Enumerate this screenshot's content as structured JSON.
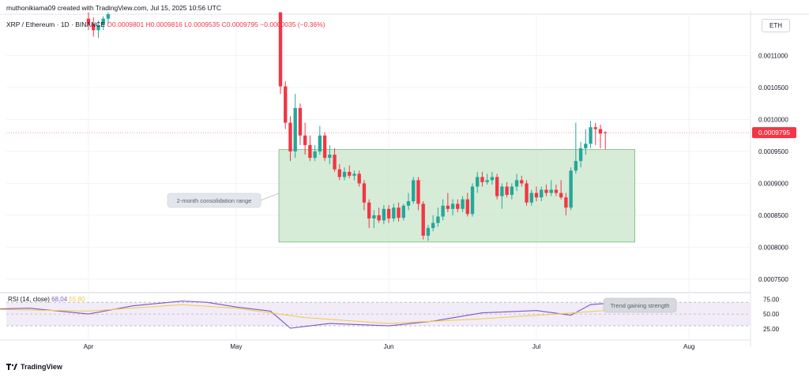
{
  "header": {
    "author_line": "muthonikiama09 created with TradingView.com, Jul 15, 2025 10:56 UTC",
    "symbol": "XRP / Ethereum · 1D · BINANCE",
    "o_label": "O",
    "o_value": "0.0009801",
    "h_label": "H",
    "h_value": "0.0009816",
    "l_label": "L",
    "l_value": "0.0009535",
    "c_label": "C",
    "c_value": "0.0009795",
    "change": "−0.0000035 (−0.36%)"
  },
  "currency_badge": "ETH",
  "price_badge": "0.0009795",
  "annotations": {
    "range_label": "2-month consolidation range",
    "rsi_label": "Trend gaining strength"
  },
  "rsi_legend": {
    "name": "RSI (14, close)",
    "value": "68.04",
    "ma_value": "55.80"
  },
  "footer": {
    "brand": "TradingView"
  },
  "colors": {
    "up": "#26a69a",
    "down": "#f23645",
    "range_fill": "#c8e6c9",
    "rsi_line": "#7e57c2",
    "rsi_ma": "#f5c842",
    "rsi_band": "#ede7f6"
  },
  "chart_data": [
    {
      "type": "candlestick",
      "title": "XRP / Ethereum · 1D · BINANCE",
      "y_axis_ticks": [
        "0.0011000",
        "0.0010500",
        "0.0010000",
        "0.0009500",
        "0.0009000",
        "0.0008500",
        "0.0008000",
        "0.0007500"
      ],
      "y_ticks_values": [
        0.0011,
        0.00105,
        0.001,
        0.00095,
        0.0009,
        0.00085,
        0.0008,
        0.00075
      ],
      "x_axis_ticks": [
        "Apr",
        "May",
        "Jun",
        "Jul",
        "Aug"
      ],
      "ylim": [
        0.00073,
        0.00117
      ],
      "grid": true,
      "consolidation_range": {
        "low": 0.000808,
        "high": 0.000953,
        "start": "May 10",
        "end": "Jul 21"
      },
      "candles_april": [
        {
          "date": "Apr 01",
          "o": 0.001158,
          "h": 0.001168,
          "l": 0.00114,
          "c": 0.00115
        },
        {
          "date": "Apr 02",
          "o": 0.00115,
          "h": 0.00116,
          "l": 0.00113,
          "c": 0.00114
        },
        {
          "date": "Apr 03",
          "o": 0.00114,
          "h": 0.001155,
          "l": 0.001128,
          "c": 0.001148
        },
        {
          "date": "Apr 04",
          "o": 0.001148,
          "h": 0.001162,
          "l": 0.00114,
          "c": 0.001158
        },
        {
          "date": "Apr 05",
          "o": 0.001158,
          "h": 0.001168,
          "l": 0.00115,
          "c": 0.001165
        }
      ],
      "candles": [
        {
          "date": "May 10",
          "o": 0.001168,
          "h": 0.001168,
          "l": 0.00104,
          "c": 0.001052
        },
        {
          "date": "May 11",
          "o": 0.001052,
          "h": 0.00106,
          "l": 0.000985,
          "c": 0.000995
        },
        {
          "date": "May 12",
          "o": 0.000995,
          "h": 0.001005,
          "l": 0.000935,
          "c": 0.00095
        },
        {
          "date": "May 13",
          "o": 0.00095,
          "h": 0.00104,
          "l": 0.00094,
          "c": 0.001018
        },
        {
          "date": "May 14",
          "o": 0.001018,
          "h": 0.001025,
          "l": 0.00096,
          "c": 0.000975
        },
        {
          "date": "May 15",
          "o": 0.000975,
          "h": 0.000995,
          "l": 0.000945,
          "c": 0.00096
        },
        {
          "date": "May 16",
          "o": 0.00096,
          "h": 0.000975,
          "l": 0.000935,
          "c": 0.00094
        },
        {
          "date": "May 17",
          "o": 0.00094,
          "h": 0.00096,
          "l": 0.000935,
          "c": 0.00095
        },
        {
          "date": "May 18",
          "o": 0.00095,
          "h": 0.00099,
          "l": 0.000945,
          "c": 0.000975
        },
        {
          "date": "May 19",
          "o": 0.000975,
          "h": 0.00098,
          "l": 0.000935,
          "c": 0.00094
        },
        {
          "date": "May 20",
          "o": 0.00094,
          "h": 0.00096,
          "l": 0.00093,
          "c": 0.000945
        },
        {
          "date": "May 21",
          "o": 0.000945,
          "h": 0.000955,
          "l": 0.000918,
          "c": 0.000922
        },
        {
          "date": "May 22",
          "o": 0.000922,
          "h": 0.00093,
          "l": 0.000905,
          "c": 0.00091
        },
        {
          "date": "May 23",
          "o": 0.00091,
          "h": 0.000925,
          "l": 0.000905,
          "c": 0.000918
        },
        {
          "date": "May 24",
          "o": 0.000918,
          "h": 0.000928,
          "l": 0.000908,
          "c": 0.000912
        },
        {
          "date": "May 25",
          "o": 0.000912,
          "h": 0.00092,
          "l": 0.000905,
          "c": 0.000915
        },
        {
          "date": "May 26",
          "o": 0.000915,
          "h": 0.00092,
          "l": 0.000895,
          "c": 0.0009
        },
        {
          "date": "May 27",
          "o": 0.0009,
          "h": 0.000905,
          "l": 0.000858,
          "c": 0.00087
        },
        {
          "date": "May 28",
          "o": 0.00087,
          "h": 0.000875,
          "l": 0.00083,
          "c": 0.000845
        },
        {
          "date": "May 29",
          "o": 0.000845,
          "h": 0.000858,
          "l": 0.00083,
          "c": 0.00085
        },
        {
          "date": "May 30",
          "o": 0.00085,
          "h": 0.000862,
          "l": 0.000838,
          "c": 0.000842
        },
        {
          "date": "May 31",
          "o": 0.000842,
          "h": 0.000866,
          "l": 0.000836,
          "c": 0.00086
        },
        {
          "date": "Jun 01",
          "o": 0.00086,
          "h": 0.000866,
          "l": 0.000838,
          "c": 0.000845
        },
        {
          "date": "Jun 02",
          "o": 0.000845,
          "h": 0.000868,
          "l": 0.00084,
          "c": 0.000862
        },
        {
          "date": "Jun 03",
          "o": 0.000862,
          "h": 0.00087,
          "l": 0.00084,
          "c": 0.000846
        },
        {
          "date": "Jun 04",
          "o": 0.000846,
          "h": 0.000868,
          "l": 0.000842,
          "c": 0.000865
        },
        {
          "date": "Jun 05",
          "o": 0.000865,
          "h": 0.000885,
          "l": 0.000858,
          "c": 0.000872
        },
        {
          "date": "Jun 06",
          "o": 0.000872,
          "h": 0.00091,
          "l": 0.000868,
          "c": 0.000905
        },
        {
          "date": "Jun 07",
          "o": 0.000905,
          "h": 0.00091,
          "l": 0.000858,
          "c": 0.000868
        },
        {
          "date": "Jun 08",
          "o": 0.000868,
          "h": 0.000872,
          "l": 0.000812,
          "c": 0.000818
        },
        {
          "date": "Jun 09",
          "o": 0.000818,
          "h": 0.000835,
          "l": 0.00081,
          "c": 0.00083
        },
        {
          "date": "Jun 10",
          "o": 0.00083,
          "h": 0.00085,
          "l": 0.000825,
          "c": 0.000838
        },
        {
          "date": "Jun 11",
          "o": 0.000838,
          "h": 0.000862,
          "l": 0.000832,
          "c": 0.000848
        },
        {
          "date": "Jun 12",
          "o": 0.000848,
          "h": 0.000875,
          "l": 0.000842,
          "c": 0.000865
        },
        {
          "date": "Jun 13",
          "o": 0.000865,
          "h": 0.000885,
          "l": 0.000855,
          "c": 0.00086
        },
        {
          "date": "Jun 14",
          "o": 0.00086,
          "h": 0.000875,
          "l": 0.00085,
          "c": 0.000868
        },
        {
          "date": "Jun 15",
          "o": 0.000868,
          "h": 0.000875,
          "l": 0.000855,
          "c": 0.00086
        },
        {
          "date": "Jun 16",
          "o": 0.00086,
          "h": 0.00088,
          "l": 0.000855,
          "c": 0.000875
        },
        {
          "date": "Jun 17",
          "o": 0.000875,
          "h": 0.000885,
          "l": 0.000848,
          "c": 0.000852
        },
        {
          "date": "Jun 18",
          "o": 0.000852,
          "h": 0.0009,
          "l": 0.000848,
          "c": 0.000895
        },
        {
          "date": "Jun 19",
          "o": 0.000895,
          "h": 0.000918,
          "l": 0.000885,
          "c": 0.00091
        },
        {
          "date": "Jun 20",
          "o": 0.00091,
          "h": 0.000918,
          "l": 0.000895,
          "c": 0.000902
        },
        {
          "date": "Jun 21",
          "o": 0.000902,
          "h": 0.000915,
          "l": 0.000898,
          "c": 0.000905
        },
        {
          "date": "Jun 22",
          "o": 0.000905,
          "h": 0.000918,
          "l": 0.000898,
          "c": 0.00091
        },
        {
          "date": "Jun 23",
          "o": 0.00091,
          "h": 0.000915,
          "l": 0.000875,
          "c": 0.00088
        },
        {
          "date": "Jun 24",
          "o": 0.00088,
          "h": 0.0009,
          "l": 0.00086,
          "c": 0.000895
        },
        {
          "date": "Jun 25",
          "o": 0.000895,
          "h": 0.000902,
          "l": 0.000878,
          "c": 0.000882
        },
        {
          "date": "Jun 26",
          "o": 0.000882,
          "h": 0.0009,
          "l": 0.000875,
          "c": 0.000895
        },
        {
          "date": "Jun 27",
          "o": 0.000895,
          "h": 0.000915,
          "l": 0.000888,
          "c": 0.000905
        },
        {
          "date": "Jun 28",
          "o": 0.000905,
          "h": 0.000912,
          "l": 0.000895,
          "c": 0.0009
        },
        {
          "date": "Jun 29",
          "o": 0.0009,
          "h": 0.000905,
          "l": 0.000865,
          "c": 0.00087
        },
        {
          "date": "Jun 30",
          "o": 0.00087,
          "h": 0.00089,
          "l": 0.000865,
          "c": 0.000885
        },
        {
          "date": "Jul 01",
          "o": 0.000885,
          "h": 0.000895,
          "l": 0.000872,
          "c": 0.000878
        },
        {
          "date": "Jul 02",
          "o": 0.000878,
          "h": 0.000895,
          "l": 0.000872,
          "c": 0.00089
        },
        {
          "date": "Jul 03",
          "o": 0.00089,
          "h": 0.000898,
          "l": 0.00088,
          "c": 0.000885
        },
        {
          "date": "Jul 04",
          "o": 0.000885,
          "h": 0.000905,
          "l": 0.00088,
          "c": 0.00089
        },
        {
          "date": "Jul 05",
          "o": 0.00089,
          "h": 0.000898,
          "l": 0.00088,
          "c": 0.000885
        },
        {
          "date": "Jul 06",
          "o": 0.000885,
          "h": 0.000905,
          "l": 0.000875,
          "c": 0.000878
        },
        {
          "date": "Jul 07",
          "o": 0.000878,
          "h": 0.000885,
          "l": 0.00085,
          "c": 0.000862
        },
        {
          "date": "Jul 08",
          "o": 0.000862,
          "h": 0.000925,
          "l": 0.000858,
          "c": 0.00092
        },
        {
          "date": "Jul 09",
          "o": 0.00092,
          "h": 0.000995,
          "l": 0.000915,
          "c": 0.000935
        },
        {
          "date": "Jul 10",
          "o": 0.000935,
          "h": 0.000965,
          "l": 0.000925,
          "c": 0.000955
        },
        {
          "date": "Jul 11",
          "o": 0.000955,
          "h": 0.000985,
          "l": 0.000945,
          "c": 0.000962
        },
        {
          "date": "Jul 12",
          "o": 0.000962,
          "h": 0.000998,
          "l": 0.000955,
          "c": 0.000988
        },
        {
          "date": "Jul 13",
          "o": 0.000988,
          "h": 0.000995,
          "l": 0.00096,
          "c": 0.000985
        },
        {
          "date": "Jul 14",
          "o": 0.000985,
          "h": 0.000992,
          "l": 0.000955,
          "c": 0.000978
        },
        {
          "date": "Jul 15",
          "o": 0.0009801,
          "h": 0.0009816,
          "l": 0.0009535,
          "c": 0.0009795
        }
      ]
    },
    {
      "type": "line",
      "title": "RSI (14, close)",
      "y_axis_ticks": [
        "75.00",
        "50.00",
        "25.00"
      ],
      "y_ticks_values": [
        75,
        50,
        25
      ],
      "ylim": [
        10,
        85
      ],
      "band": [
        30,
        70
      ],
      "series": [
        {
          "name": "RSI",
          "x": [
            "Mar 01",
            "Mar 10",
            "Mar 20",
            "Apr 01",
            "Apr 10",
            "Apr 20",
            "Apr 25",
            "May 01",
            "May 08",
            "May 12",
            "May 20",
            "Jun 01",
            "Jun 10",
            "Jun 20",
            "Jul 01",
            "Jul 08",
            "Jul 12",
            "Jul 15"
          ],
          "values": [
            62,
            58,
            60,
            50,
            64,
            72,
            70,
            62,
            55,
            26,
            34,
            30,
            38,
            52,
            56,
            48,
            66,
            68
          ]
        },
        {
          "name": "55.80",
          "x": [
            "Mar 01",
            "Apr 01",
            "Apr 20",
            "May 01",
            "May 15",
            "Jun 01",
            "Jun 20",
            "Jul 05",
            "Jul 15"
          ],
          "values": [
            60,
            55,
            66,
            60,
            44,
            34,
            42,
            50,
            56
          ]
        }
      ]
    }
  ]
}
